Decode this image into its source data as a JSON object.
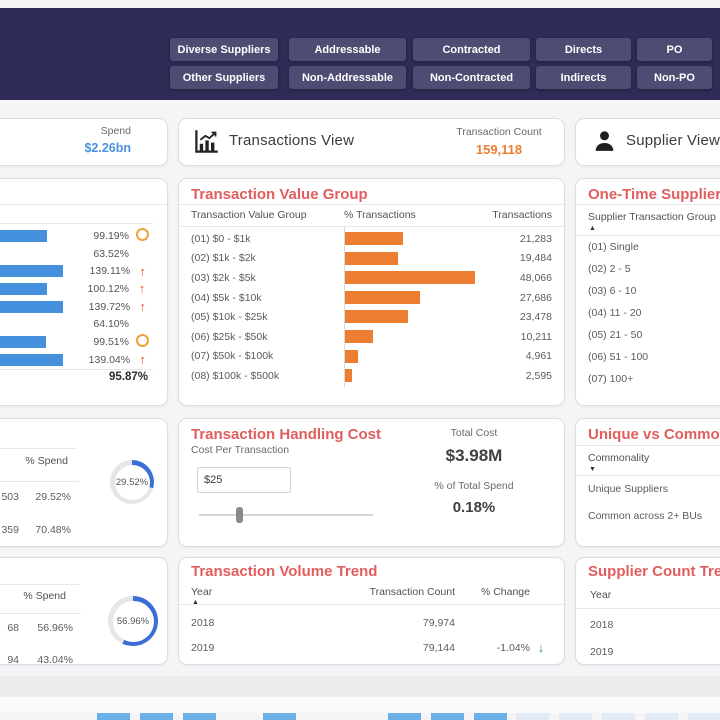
{
  "header": {
    "filters_row1": [
      "Diverse Suppliers",
      "Addressable",
      "Contracted",
      "Directs",
      "PO"
    ],
    "filters_row2": [
      "Other Suppliers",
      "Non-Addressable",
      "Non-Contracted",
      "Indirects",
      "Non-PO"
    ]
  },
  "cards": {
    "spend": {
      "label": "Spend",
      "value": "$2.26bn"
    },
    "transactions": {
      "title": "Transactions View",
      "count_label": "Transaction Count",
      "count": "159,118"
    },
    "supplier": {
      "title": "Supplier View"
    }
  },
  "panels": {
    "kpi_top": {
      "rows": [
        {
          "pct": "99.19%",
          "indicator": "flat",
          "bar": 96
        },
        {
          "pct": "63.52%",
          "indicator": "none",
          "bar": 30
        },
        {
          "pct": "139.11%",
          "indicator": "up",
          "bar": 118
        },
        {
          "pct": "100.12%",
          "indicator": "up",
          "bar": 96
        },
        {
          "pct": "139.72%",
          "indicator": "up",
          "bar": 117
        },
        {
          "pct": "64.10%",
          "indicator": "none",
          "bar": 30
        },
        {
          "pct": "99.51%",
          "indicator": "flat",
          "bar": 95
        },
        {
          "pct": "139.04%",
          "indicator": "up",
          "bar": 117
        }
      ],
      "total": "95.87%"
    },
    "tvg": {
      "title": "Transaction Value Group",
      "columns": [
        "Transaction Value Group",
        "% Transactions",
        "Transactions"
      ],
      "rows": [
        {
          "group": "(01) $0 - $1k",
          "value": 21283,
          "display": "21,283"
        },
        {
          "group": "(02) $1k - $2k",
          "value": 19484,
          "display": "19,484"
        },
        {
          "group": "(03) $2k - $5k",
          "value": 48066,
          "display": "48,066"
        },
        {
          "group": "(04) $5k - $10k",
          "value": 27686,
          "display": "27,686"
        },
        {
          "group": "(05) $10k - $25k",
          "value": 23478,
          "display": "23,478"
        },
        {
          "group": "(06) $25k - $50k",
          "value": 10211,
          "display": "10,211"
        },
        {
          "group": "(07) $50k - $100k",
          "value": 4961,
          "display": "4,961"
        },
        {
          "group": "(08) $100k - $500k",
          "value": 2595,
          "display": "2,595"
        }
      ]
    },
    "one_time": {
      "title": "One-Time Supplier A",
      "column": "Supplier Transaction Group",
      "rows": [
        "(01) Single",
        "(02) 2 - 5",
        "(03) 6 - 10",
        "(04) 11 - 20",
        "(05) 21 - 50",
        "(06) 51 - 100",
        "(07) 100+"
      ]
    },
    "spend_mid": {
      "column": "% Spend",
      "rows": [
        {
          "value": "503",
          "pct": "29.52%"
        },
        {
          "value": "359",
          "pct": "70.48%"
        }
      ],
      "donut": {
        "pct": 29.52,
        "label": "29.52%"
      }
    },
    "thc": {
      "title": "Transaction Handling Cost",
      "cost_per_label": "Cost Per Transaction",
      "cost_input": "$25",
      "slider_pct": 23,
      "total_cost_label": "Total Cost",
      "total_cost": "$3.98M",
      "pct_spend_label": "% of Total Spend",
      "pct_spend": "0.18%"
    },
    "unique_common": {
      "title": "Unique vs Common",
      "column": "Commonality",
      "rows": [
        "Unique Suppliers",
        "Common across 2+ BUs"
      ]
    },
    "spend_bottom": {
      "column": "% Spend",
      "rows": [
        {
          "value": "68",
          "pct": "56.96%"
        },
        {
          "value": "94",
          "pct": "43.04%"
        }
      ],
      "donut": {
        "pct": 56.96,
        "label": "56.96%"
      }
    },
    "tvt": {
      "title": "Transaction Volume Trend",
      "columns": [
        "Year",
        "Transaction Count",
        "% Change"
      ],
      "rows": [
        {
          "year": "2018",
          "count": "79,974",
          "change": "",
          "trend": ""
        },
        {
          "year": "2019",
          "count": "79,144",
          "change": "-1.04%",
          "trend": "down"
        }
      ]
    },
    "sct": {
      "title": "Supplier Count Trend",
      "column": "Year",
      "rows": [
        "2018",
        "2019"
      ]
    }
  },
  "colors": {
    "navy": "#2f2c58",
    "button_navy": "#4e4c72",
    "title_red": "#e25d5d",
    "accent_orange": "#ed7d31",
    "accent_blue": "#4490dd",
    "donut_blue": "#3b6fd8",
    "spend_blue": "#4a90e2",
    "up_red": "#e2572b",
    "down_green": "#2f9e44",
    "flat_orange": "#f0a13c"
  }
}
